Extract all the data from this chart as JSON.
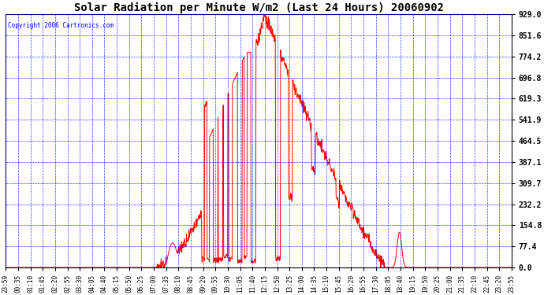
{
  "title": "Solar Radiation per Minute W/m2 (Last 24 Hours) 20060902",
  "copyright": "Copyright 2006 Cartronics.com",
  "y_ticks": [
    0.0,
    77.4,
    154.8,
    232.2,
    309.7,
    387.1,
    464.5,
    541.9,
    619.3,
    696.8,
    774.2,
    851.6,
    929.0
  ],
  "y_max": 929.0,
  "y_min": 0.0,
  "line_color": "#ff0000",
  "bg_color": "#ffffff",
  "grid_color": "#0000ff",
  "title_color": "#000000",
  "copyright_color": "#0000ff",
  "x_labels": [
    "23:59",
    "00:35",
    "01:10",
    "01:45",
    "02:20",
    "02:55",
    "03:30",
    "04:05",
    "04:40",
    "05:15",
    "05:50",
    "06:25",
    "07:00",
    "07:35",
    "08:10",
    "08:45",
    "09:20",
    "09:55",
    "10:30",
    "11:05",
    "11:40",
    "12:15",
    "12:50",
    "13:25",
    "14:00",
    "14:35",
    "15:10",
    "15:45",
    "16:20",
    "16:55",
    "17:30",
    "18:05",
    "18:40",
    "19:15",
    "19:50",
    "20:25",
    "21:00",
    "21:35",
    "22:10",
    "22:45",
    "23:20",
    "23:55"
  ],
  "title_fontsize": 10,
  "ytick_fontsize": 7,
  "xtick_fontsize": 5.5
}
